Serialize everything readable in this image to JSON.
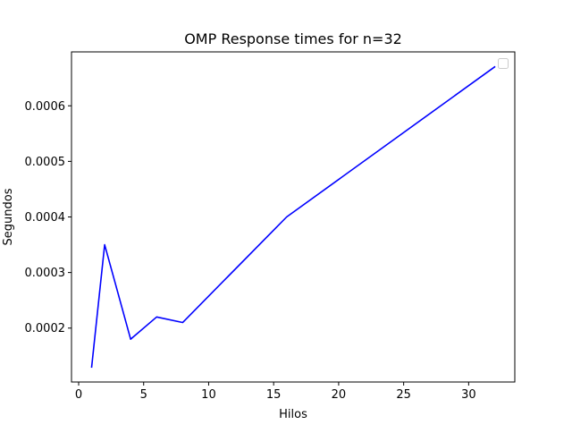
{
  "chart_data": {
    "type": "line",
    "title": "OMP Response times for n=32",
    "xlabel": "Hilos",
    "ylabel": "Segundos",
    "x": [
      1,
      2,
      4,
      6,
      8,
      16,
      32
    ],
    "series": [
      {
        "values": [
          0.00013,
          0.00035,
          0.00018,
          0.00022,
          0.00021,
          0.0004,
          0.00067
        ],
        "color": "#0000ff"
      }
    ],
    "xlim": [
      -0.55,
      33.55
    ],
    "ylim": [
      0.000103,
      0.000697
    ],
    "xticks": [
      0,
      5,
      10,
      15,
      20,
      25,
      30
    ],
    "xtick_labels": [
      "0",
      "5",
      "10",
      "15",
      "20",
      "25",
      "30"
    ],
    "yticks": [
      0.0002,
      0.0003,
      0.0004,
      0.0005,
      0.0006
    ],
    "ytick_labels": [
      "0.0002",
      "0.0003",
      "0.0004",
      "0.0005",
      "0.0006"
    ],
    "grid": false,
    "legend": {
      "placement": "upper right",
      "entries": []
    }
  }
}
